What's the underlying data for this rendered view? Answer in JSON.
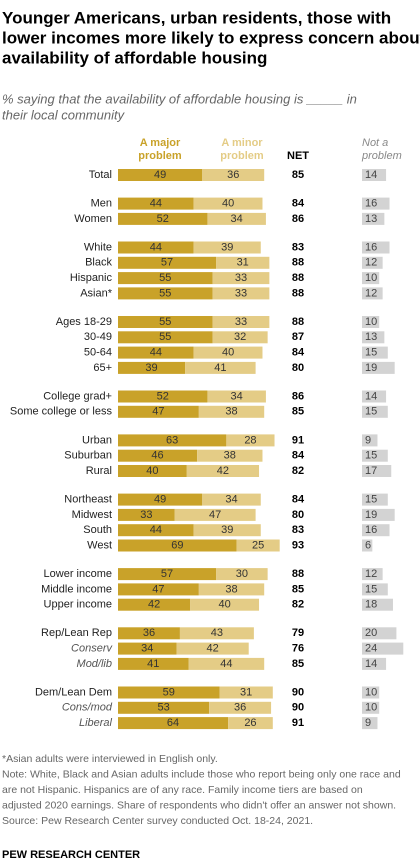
{
  "chart_data": {
    "type": "bar",
    "title": [
      "Younger Americans, urban residents, those with",
      "lower incomes more likely to express concern about",
      "availability of affordable housing"
    ],
    "subtitle": [
      "% saying that the availability of affordable housing is _____ in",
      "their local community"
    ],
    "series": [
      {
        "name": [
          "A major",
          "problem"
        ],
        "color": "#c9a229"
      },
      {
        "name": [
          "A minor",
          "problem"
        ],
        "color": "#e4cc86"
      }
    ],
    "net_label": "NET",
    "not_label": [
      "Not a",
      "problem"
    ],
    "not_color": "#d3d3d3",
    "groups": [
      [
        {
          "label": "Total",
          "major": 49,
          "minor": 36,
          "net": 85,
          "not": 14
        }
      ],
      [
        {
          "label": "Men",
          "major": 44,
          "minor": 40,
          "net": 84,
          "not": 16
        },
        {
          "label": "Women",
          "major": 52,
          "minor": 34,
          "net": 86,
          "not": 13
        }
      ],
      [
        {
          "label": "White",
          "major": 44,
          "minor": 39,
          "net": 83,
          "not": 16
        },
        {
          "label": "Black",
          "major": 57,
          "minor": 31,
          "net": 88,
          "not": 12
        },
        {
          "label": "Hispanic",
          "major": 55,
          "minor": 33,
          "net": 88,
          "not": 10
        },
        {
          "label": "Asian*",
          "major": 55,
          "minor": 33,
          "net": 88,
          "not": 12
        }
      ],
      [
        {
          "label": "Ages 18-29",
          "major": 55,
          "minor": 33,
          "net": 88,
          "not": 10
        },
        {
          "label": "30-49",
          "major": 55,
          "minor": 32,
          "net": 87,
          "not": 13
        },
        {
          "label": "50-64",
          "major": 44,
          "minor": 40,
          "net": 84,
          "not": 15
        },
        {
          "label": "65+",
          "major": 39,
          "minor": 41,
          "net": 80,
          "not": 19
        }
      ],
      [
        {
          "label": "College grad+",
          "major": 52,
          "minor": 34,
          "net": 86,
          "not": 14
        },
        {
          "label": "Some college or less",
          "major": 47,
          "minor": 38,
          "net": 85,
          "not": 15
        }
      ],
      [
        {
          "label": "Urban",
          "major": 63,
          "minor": 28,
          "net": 91,
          "not": 9
        },
        {
          "label": "Suburban",
          "major": 46,
          "minor": 38,
          "net": 84,
          "not": 15
        },
        {
          "label": "Rural",
          "major": 40,
          "minor": 42,
          "net": 82,
          "not": 17
        }
      ],
      [
        {
          "label": "Northeast",
          "major": 49,
          "minor": 34,
          "net": 84,
          "not": 15
        },
        {
          "label": "Midwest",
          "major": 33,
          "minor": 47,
          "net": 80,
          "not": 19
        },
        {
          "label": "South",
          "major": 44,
          "minor": 39,
          "net": 83,
          "not": 16
        },
        {
          "label": "West",
          "major": 69,
          "minor": 25,
          "net": 93,
          "not": 6
        }
      ],
      [
        {
          "label": "Lower income",
          "major": 57,
          "minor": 30,
          "net": 88,
          "not": 12
        },
        {
          "label": "Middle income",
          "major": 47,
          "minor": 38,
          "net": 85,
          "not": 15
        },
        {
          "label": "Upper income",
          "major": 42,
          "minor": 40,
          "net": 82,
          "not": 18
        }
      ],
      [
        {
          "label": "Rep/Lean Rep",
          "major": 36,
          "minor": 43,
          "net": 79,
          "not": 20
        },
        {
          "label": "Conserv",
          "major": 34,
          "minor": 42,
          "net": 76,
          "not": 24,
          "italic": true
        },
        {
          "label": "Mod/lib",
          "major": 41,
          "minor": 44,
          "net": 85,
          "not": 14,
          "italic": true
        }
      ],
      [
        {
          "label": "Dem/Lean Dem",
          "major": 59,
          "minor": 31,
          "net": 90,
          "not": 10
        },
        {
          "label": "Cons/mod",
          "major": 53,
          "minor": 36,
          "net": 90,
          "not": 10,
          "italic": true
        },
        {
          "label": "Liberal",
          "major": 64,
          "minor": 26,
          "net": 91,
          "not": 9,
          "italic": true
        }
      ]
    ],
    "notes": [
      "*Asian adults were interviewed in English only.",
      "Note: White, Black and Asian adults include those who report being only one race and",
      "are not Hispanic. Hispanics are of any race. Family income tiers are based on",
      "adjusted 2020 earnings. Share of respondents who didn't offer an answer not shown.",
      "Source: Pew Research Center survey conducted Oct. 18-24, 2021."
    ],
    "source_org": "PEW RESEARCH CENTER"
  }
}
